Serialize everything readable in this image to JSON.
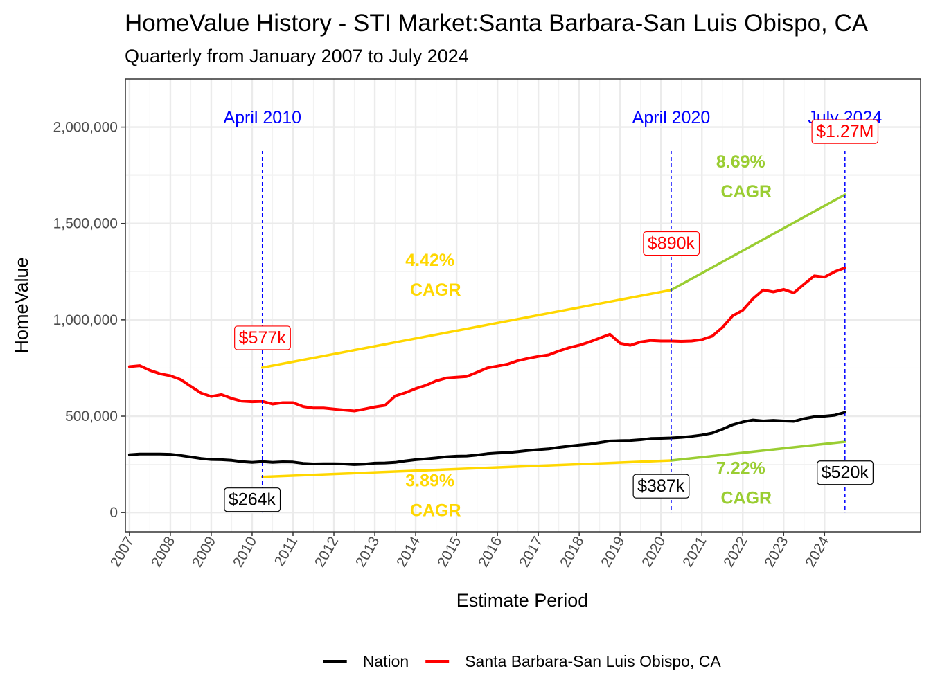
{
  "chart_data": {
    "type": "line",
    "title": "HomeValue History - STI Market:Santa Barbara-San Luis Obispo, CA",
    "subtitle": "Quarterly from January 2007 to July 2024",
    "xlabel": "Estimate Period",
    "ylabel": "HomeValue",
    "xlim": [
      2006.9,
      2026.35
    ],
    "ylim": [
      -100000,
      2250000
    ],
    "x_ticks": [
      "2007",
      "2008",
      "2009",
      "2010",
      "2011",
      "2012",
      "2013",
      "2014",
      "2015",
      "2016",
      "2017",
      "2018",
      "2019",
      "2020",
      "2021",
      "2022",
      "2023",
      "2024"
    ],
    "y_ticks": [
      {
        "value": 0,
        "label": "0"
      },
      {
        "value": 500000,
        "label": "500,000"
      },
      {
        "value": 1000000,
        "label": "1,000,000"
      },
      {
        "value": 1500000,
        "label": "1,500,000"
      },
      {
        "value": 2000000,
        "label": "2,000,000"
      }
    ],
    "grid": true,
    "legend": "bottom",
    "series": [
      {
        "name": "Nation",
        "color": "#000000",
        "x": [
          2007.0,
          2007.25,
          2007.5,
          2007.75,
          2008.0,
          2008.25,
          2008.5,
          2008.75,
          2009.0,
          2009.25,
          2009.5,
          2009.75,
          2010.0,
          2010.25,
          2010.5,
          2010.75,
          2011.0,
          2011.25,
          2011.5,
          2011.75,
          2012.0,
          2012.25,
          2012.5,
          2012.75,
          2013.0,
          2013.25,
          2013.5,
          2013.75,
          2014.0,
          2014.25,
          2014.5,
          2014.75,
          2015.0,
          2015.25,
          2015.5,
          2015.75,
          2016.0,
          2016.25,
          2016.5,
          2016.75,
          2017.0,
          2017.25,
          2017.5,
          2017.75,
          2018.0,
          2018.25,
          2018.5,
          2018.75,
          2019.0,
          2019.25,
          2019.5,
          2019.75,
          2020.0,
          2020.25,
          2020.5,
          2020.75,
          2021.0,
          2021.25,
          2021.5,
          2021.75,
          2022.0,
          2022.25,
          2022.5,
          2022.75,
          2023.0,
          2023.25,
          2023.5,
          2023.75,
          2024.0,
          2024.25,
          2024.5
        ],
        "values": [
          300000,
          303000,
          303000,
          303000,
          302000,
          296000,
          288000,
          280000,
          275000,
          274000,
          271000,
          264000,
          260000,
          264000,
          260000,
          263000,
          262000,
          255000,
          252000,
          253000,
          253000,
          252000,
          249000,
          251000,
          256000,
          257000,
          260000,
          268000,
          274000,
          278000,
          283000,
          289000,
          292000,
          293000,
          298000,
          305000,
          309000,
          311000,
          316000,
          322000,
          326000,
          330000,
          338000,
          344000,
          350000,
          355000,
          363000,
          371000,
          373000,
          374000,
          378000,
          384000,
          385000,
          387000,
          390000,
          395000,
          402000,
          412000,
          432000,
          455000,
          470000,
          480000,
          475000,
          478000,
          475000,
          473000,
          487000,
          497000,
          500000,
          505000,
          520000
        ]
      },
      {
        "name": "Santa Barbara-San Luis Obispo, CA",
        "color": "#ff0000",
        "x": [
          2007.0,
          2007.25,
          2007.5,
          2007.75,
          2008.0,
          2008.25,
          2008.5,
          2008.75,
          2009.0,
          2009.25,
          2009.5,
          2009.75,
          2010.0,
          2010.25,
          2010.5,
          2010.75,
          2011.0,
          2011.25,
          2011.5,
          2011.75,
          2012.0,
          2012.25,
          2012.5,
          2012.75,
          2013.0,
          2013.25,
          2013.5,
          2013.75,
          2014.0,
          2014.25,
          2014.5,
          2014.75,
          2015.0,
          2015.25,
          2015.5,
          2015.75,
          2016.0,
          2016.25,
          2016.5,
          2016.75,
          2017.0,
          2017.25,
          2017.5,
          2017.75,
          2018.0,
          2018.25,
          2018.5,
          2018.75,
          2019.0,
          2019.25,
          2019.5,
          2019.75,
          2020.0,
          2020.25,
          2020.5,
          2020.75,
          2021.0,
          2021.25,
          2021.5,
          2021.75,
          2022.0,
          2022.25,
          2022.5,
          2022.75,
          2023.0,
          2023.25,
          2023.5,
          2023.75,
          2024.0,
          2024.25,
          2024.5
        ],
        "values": [
          757000,
          762000,
          738000,
          720000,
          710000,
          690000,
          655000,
          620000,
          602000,
          612000,
          592000,
          578000,
          575000,
          577000,
          563000,
          570000,
          570000,
          550000,
          542000,
          542000,
          537000,
          532000,
          527000,
          537000,
          548000,
          556000,
          605000,
          622000,
          643000,
          660000,
          683000,
          698000,
          702000,
          706000,
          728000,
          750000,
          760000,
          770000,
          788000,
          800000,
          810000,
          818000,
          838000,
          855000,
          868000,
          885000,
          905000,
          925000,
          878000,
          868000,
          885000,
          893000,
          890000,
          890000,
          888000,
          890000,
          897000,
          915000,
          960000,
          1020000,
          1050000,
          1110000,
          1155000,
          1145000,
          1158000,
          1140000,
          1185000,
          1228000,
          1222000,
          1250000,
          1270000
        ]
      }
    ],
    "period_markers": [
      {
        "x": 2010.25,
        "label": "April 2010"
      },
      {
        "x": 2020.25,
        "label": "April 2020"
      },
      {
        "x": 2024.5,
        "label": "July 2024"
      }
    ],
    "value_labels": [
      {
        "x": 2010.25,
        "y": 910000,
        "text": "$577k",
        "color": "#ff0000"
      },
      {
        "x": 2020.25,
        "y": 1400000,
        "text": "$890k",
        "color": "#ff0000"
      },
      {
        "x": 2024.5,
        "y": 1980000,
        "text": "$1.27M",
        "color": "#ff0000"
      },
      {
        "x": 2010.0,
        "y": 70000,
        "text": "$264k",
        "color": "#000000"
      },
      {
        "x": 2020.0,
        "y": 140000,
        "text": "$387k",
        "color": "#000000"
      },
      {
        "x": 2024.5,
        "y": 210000,
        "text": "$520k",
        "color": "#000000"
      }
    ],
    "cagr_lines": [
      {
        "x": [
          2010.25,
          2020.25
        ],
        "y": [
          752000,
          1155000
        ],
        "color": "#ffd700"
      },
      {
        "x": [
          2020.25,
          2024.5
        ],
        "y": [
          1155000,
          1650000
        ],
        "color": "#9acd32"
      },
      {
        "x": [
          2010.25,
          2020.25
        ],
        "y": [
          185000,
          270000
        ],
        "color": "#ffd700"
      },
      {
        "x": [
          2020.25,
          2024.5
        ],
        "y": [
          270000,
          367000
        ],
        "color": "#9acd32"
      }
    ],
    "cagr_labels": [
      {
        "x": 2014.35,
        "y": 1280000,
        "pct": "4.42%",
        "word": "CAGR",
        "color": "#ffd700"
      },
      {
        "x": 2021.95,
        "y": 1790000,
        "pct": "8.69%",
        "word": "CAGR",
        "color": "#9acd32"
      },
      {
        "x": 2014.35,
        "y": 135000,
        "pct": "3.89%",
        "word": "CAGR",
        "color": "#ffd700"
      },
      {
        "x": 2021.95,
        "y": 200000,
        "pct": "7.22%",
        "word": "CAGR",
        "color": "#9acd32"
      }
    ]
  }
}
